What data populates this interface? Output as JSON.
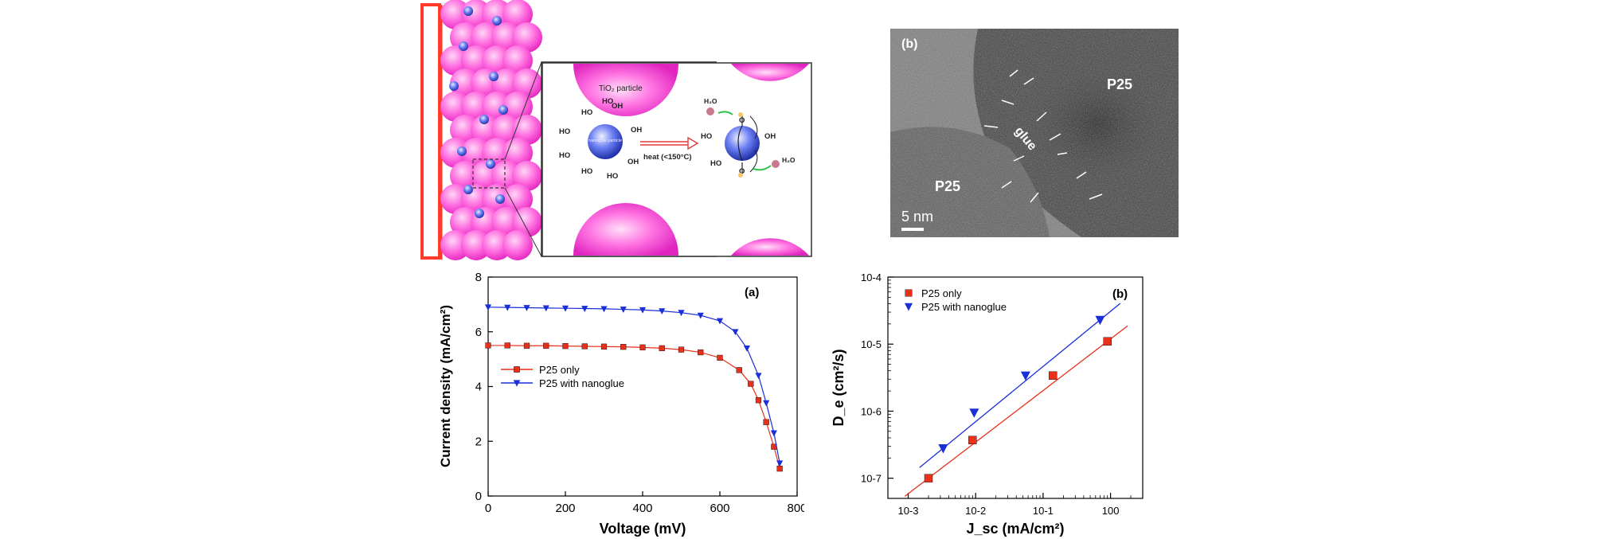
{
  "schematic": {
    "particle_label": "TiO₂ particle",
    "nanoglue_label": "nanoglue particle",
    "heat_label": "heat (<150°C)",
    "hydroxyl": "OH",
    "hydroxyl_rev": "HO",
    "water": "H₂O",
    "oxygen": "O",
    "colors": {
      "particle": "#ff4fd8",
      "glue": "#3344cc",
      "substrate": "#ff3a2a"
    }
  },
  "tem": {
    "panel_label": "(b)",
    "label_p25_top": "P25",
    "label_p25_bottom": "P25",
    "label_glue": "glue",
    "scale_bar": "5 nm"
  },
  "chart_data": [
    {
      "type": "scatter",
      "panel_label": "(a)",
      "xlabel": "Voltage (mV)",
      "ylabel": "Current density (mA/cm²)",
      "xlim": [
        0,
        800
      ],
      "ylim": [
        0,
        8
      ],
      "x_ticks": [
        0,
        200,
        400,
        600,
        800
      ],
      "y_ticks": [
        0,
        2,
        4,
        6,
        8
      ],
      "legend_position": "center-left",
      "series": [
        {
          "name": "P25 only",
          "marker": "square",
          "color": "#e8301a",
          "x": [
            0,
            50,
            100,
            150,
            200,
            250,
            300,
            350,
            400,
            450,
            500,
            550,
            600,
            650,
            680,
            700,
            720,
            740,
            755
          ],
          "y": [
            5.5,
            5.5,
            5.49,
            5.49,
            5.48,
            5.47,
            5.46,
            5.45,
            5.43,
            5.4,
            5.35,
            5.25,
            5.05,
            4.6,
            4.1,
            3.5,
            2.7,
            1.8,
            1.0
          ]
        },
        {
          "name": "P25 with nanoglue",
          "marker": "triangle-down",
          "color": "#1a2fd8",
          "x": [
            0,
            50,
            100,
            150,
            200,
            250,
            300,
            350,
            400,
            450,
            500,
            550,
            600,
            640,
            670,
            700,
            720,
            740,
            755
          ],
          "y": [
            6.9,
            6.89,
            6.88,
            6.87,
            6.86,
            6.85,
            6.84,
            6.82,
            6.8,
            6.76,
            6.7,
            6.6,
            6.4,
            6.0,
            5.4,
            4.4,
            3.4,
            2.3,
            1.2
          ]
        }
      ]
    },
    {
      "type": "scatter",
      "panel_label": "(b)",
      "xlabel": "J_sc (mA/cm²)",
      "ylabel": "D_e (cm²/s)",
      "x_scale": "log",
      "y_scale": "log",
      "xlim": [
        0.0005,
        3
      ],
      "ylim": [
        5e-08,
        0.0001
      ],
      "x_ticks": [
        "10-3",
        "10-2",
        "10-1",
        "100"
      ],
      "y_ticks": [
        "10-7",
        "10-6",
        "10-5",
        "10-4"
      ],
      "legend_position": "top-left",
      "series": [
        {
          "name": "P25 only",
          "marker": "square",
          "color": "#e8301a",
          "x": [
            0.002,
            0.009,
            0.14,
            0.9
          ],
          "y": [
            1e-07,
            3.7e-07,
            3.4e-06,
            1.1e-05
          ]
        },
        {
          "name": "P25 with nanoglue",
          "marker": "triangle-down",
          "color": "#1a2fd8",
          "x": [
            0.0033,
            0.0095,
            0.055,
            0.7
          ],
          "y": [
            2.8e-07,
            9.5e-07,
            3.4e-06,
            2.3e-05
          ]
        }
      ]
    }
  ]
}
